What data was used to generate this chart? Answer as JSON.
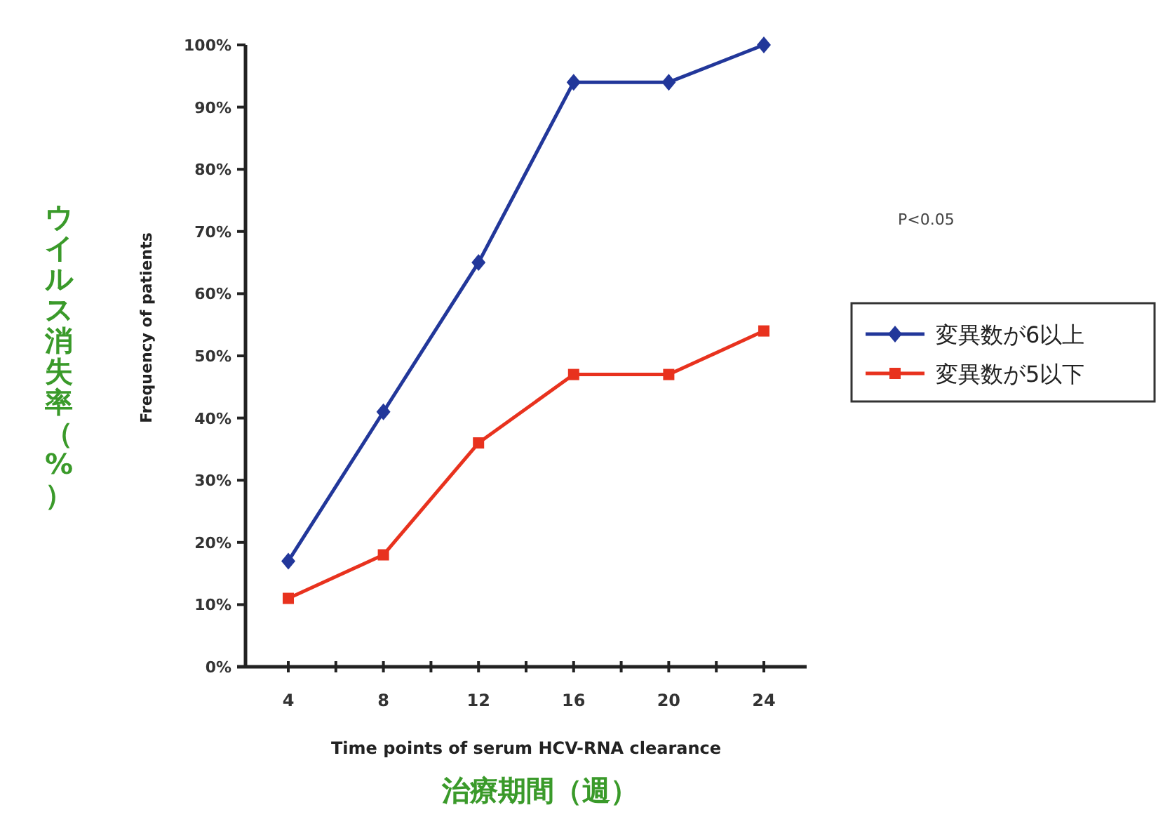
{
  "chart_data": {
    "type": "line",
    "categories": [
      "4",
      "8",
      "12",
      "16",
      "20",
      "24"
    ],
    "series": [
      {
        "name": "変異数が6以上",
        "color": "#22379a",
        "marker": "diamond",
        "values": [
          17,
          41,
          65,
          94,
          94,
          100
        ]
      },
      {
        "name": "変異数が5以下",
        "color": "#e8321e",
        "marker": "square",
        "values": [
          11,
          18,
          36,
          47,
          47,
          54
        ]
      }
    ],
    "ylim": [
      0,
      100
    ],
    "yticks": [
      {
        "value": 0,
        "label": "0%"
      },
      {
        "value": 10,
        "label": "10%"
      },
      {
        "value": 20,
        "label": "20%"
      },
      {
        "value": 30,
        "label": "30%"
      },
      {
        "value": 40,
        "label": "40%"
      },
      {
        "value": 50,
        "label": "50%"
      },
      {
        "value": 60,
        "label": "60%"
      },
      {
        "value": 70,
        "label": "70%"
      },
      {
        "value": 80,
        "label": "80%"
      },
      {
        "value": 90,
        "label": "90%"
      },
      {
        "value": 100,
        "label": "100%"
      }
    ],
    "ylabel": "ウイルス消失率（%）",
    "xlabel": "Time points of serum HCV-RNA clearance",
    "annotations": [
      "治療期間（週）",
      "Frequency of patients",
      "P<0.05"
    ],
    "grid": false,
    "legend": "right",
    "line_style": "solid"
  }
}
